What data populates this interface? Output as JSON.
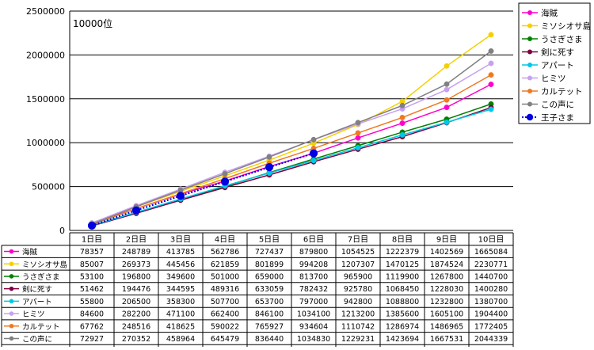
{
  "chart_data": {
    "type": "line",
    "annotation": "10000位",
    "categories": [
      "1日目",
      "2日目",
      "3日目",
      "4日目",
      "5日目",
      "6日目",
      "7日目",
      "8日目",
      "9日目",
      "10日目"
    ],
    "yticks": [
      "0",
      "500000",
      "1000000",
      "1500000",
      "2000000",
      "2500000"
    ],
    "ylim": [
      0,
      2500000
    ],
    "grid": true,
    "legend_position": "right",
    "series": [
      {
        "name": "海賊",
        "color": "#ff00cc",
        "marker": "circle",
        "dashed": false,
        "values": [
          78357,
          248789,
          413785,
          562786,
          727437,
          879800,
          1054525,
          1222379,
          1402569,
          1665084
        ]
      },
      {
        "name": "ミソシオサ島",
        "color": "#f5d000",
        "marker": "circle",
        "dashed": false,
        "values": [
          85007,
          269373,
          445456,
          621859,
          801899,
          994208,
          1207307,
          1470125,
          1874524,
          2230771
        ]
      },
      {
        "name": "うさぎさま",
        "color": "#008000",
        "marker": "circle",
        "dashed": false,
        "values": [
          53100,
          196800,
          349600,
          501000,
          659000,
          813700,
          965900,
          1119900,
          1267800,
          1440700
        ]
      },
      {
        "name": "剣に死す",
        "color": "#800040",
        "marker": "circle",
        "dashed": false,
        "values": [
          51462,
          194476,
          344595,
          489316,
          633059,
          782432,
          925780,
          1068450,
          1228030,
          1400280
        ]
      },
      {
        "name": "アパート",
        "color": "#00c8e8",
        "marker": "circle",
        "dashed": false,
        "values": [
          55800,
          206500,
          358300,
          507700,
          653700,
          797000,
          942800,
          1088800,
          1232800,
          1380700
        ]
      },
      {
        "name": "ヒミツ",
        "color": "#c8a0f0",
        "marker": "circle",
        "dashed": false,
        "values": [
          84600,
          282200,
          471100,
          662400,
          846100,
          1034100,
          1213200,
          1385600,
          1605100,
          1904400
        ]
      },
      {
        "name": "カルテット",
        "color": "#f07820",
        "marker": "circle",
        "dashed": false,
        "values": [
          67762,
          248516,
          418625,
          590022,
          765927,
          934604,
          1110742,
          1286974,
          1486965,
          1772405
        ]
      },
      {
        "name": "この声に",
        "color": "#808080",
        "marker": "circle",
        "dashed": false,
        "values": [
          72927,
          270352,
          458964,
          645479,
          836440,
          1034830,
          1229231,
          1423694,
          1667531,
          2044339
        ]
      },
      {
        "name": "王子さま",
        "color": "#0000e0",
        "marker": "diamond",
        "dashed": true,
        "values": [
          55410,
          227962,
          394071,
          556149,
          720921,
          878474,
          null,
          null,
          null,
          null
        ]
      }
    ]
  }
}
